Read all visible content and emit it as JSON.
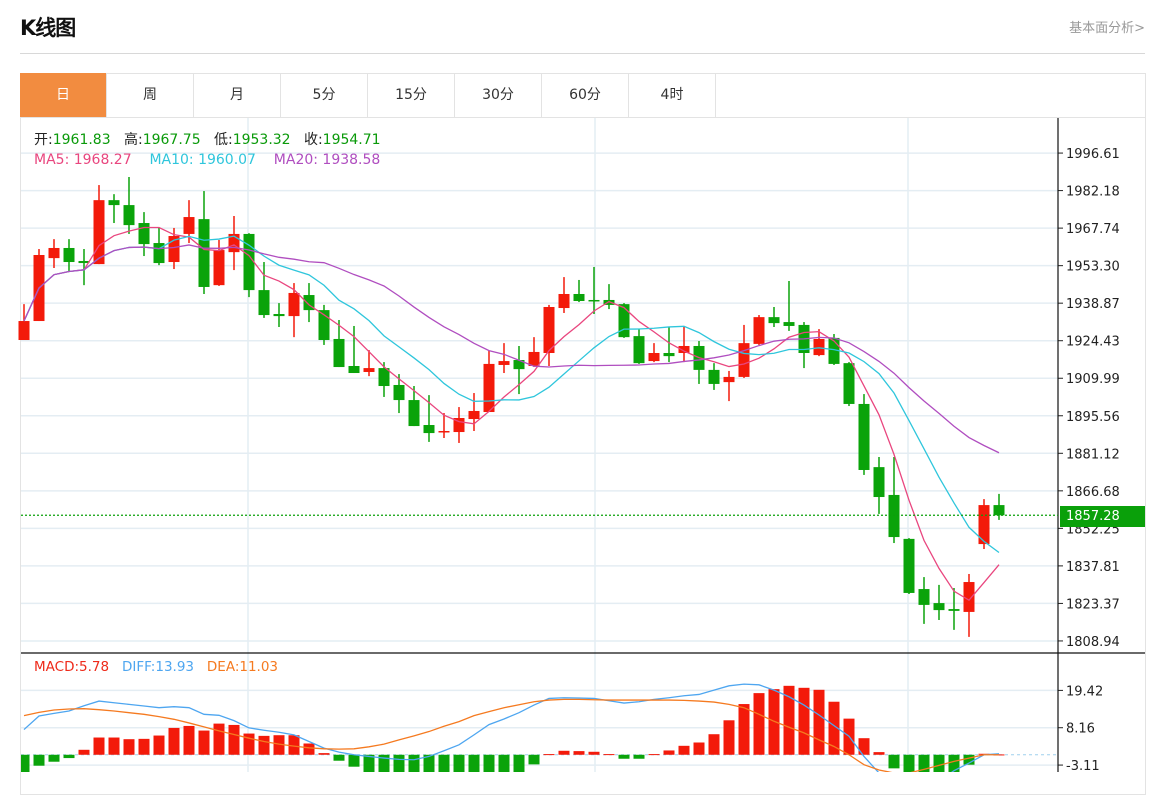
{
  "header": {
    "title": "K线图",
    "link": "基本面分析>"
  },
  "tabs": [
    {
      "label": "日",
      "active": true
    },
    {
      "label": "周"
    },
    {
      "label": "月"
    },
    {
      "label": "5分"
    },
    {
      "label": "15分"
    },
    {
      "label": "30分"
    },
    {
      "label": "60分"
    },
    {
      "label": "4时"
    }
  ],
  "ohlc_info": {
    "open_label": "开:",
    "open": "1961.83",
    "high_label": "高:",
    "high": "1967.75",
    "low_label": "低:",
    "low": "1953.32",
    "close_label": "收:",
    "close": "1954.71"
  },
  "ma_info": {
    "ma5": "MA5: 1968.27",
    "ma10": "MA10: 1960.07",
    "ma20": "MA20: 1938.58"
  },
  "macd_info": {
    "macd": "MACD:5.78",
    "diff": "DIFF:13.93",
    "dea": "DEA:11.03"
  },
  "current_price": "1857.28",
  "colors": {
    "up": "#f31a0a",
    "down": "#0aa30a",
    "ma5": "#e9467f",
    "ma10": "#2fc6dc",
    "ma20": "#b04ec0",
    "diff": "#4ea6f0",
    "dea": "#f57a20",
    "accent": "#f28c40"
  },
  "chart_data": [
    {
      "type": "candlestick",
      "title": "K线图",
      "y_ticks": [
        "1996.61",
        "1982.18",
        "1967.74",
        "1953.30",
        "1938.87",
        "1924.43",
        "1909.99",
        "1895.56",
        "1881.12",
        "1866.68",
        "1852.25",
        "1837.81",
        "1823.37",
        "1808.94"
      ],
      "ylim": [
        1804.3,
        2010.1
      ],
      "grid": true,
      "candles_ohlc": [
        [
          1924.7,
          1938.5,
          1924.7,
          1932.0
        ],
        [
          1932.0,
          1959.7,
          1932.0,
          1957.4
        ],
        [
          1956.2,
          1963.5,
          1952.4,
          1960.1
        ],
        [
          1960.1,
          1963.5,
          1951.2,
          1954.7
        ],
        [
          1955.1,
          1959.7,
          1945.8,
          1954.3
        ],
        [
          1953.9,
          1984.3,
          1953.9,
          1978.5
        ],
        [
          1978.5,
          1980.8,
          1969.7,
          1976.6
        ],
        [
          1976.6,
          1987.4,
          1965.5,
          1968.9
        ],
        [
          1969.7,
          1973.9,
          1957.0,
          1961.6
        ],
        [
          1962.0,
          1967.8,
          1953.5,
          1954.3
        ],
        [
          1954.7,
          1967.8,
          1952.0,
          1964.7
        ],
        [
          1965.5,
          1978.5,
          1962.0,
          1972.0
        ],
        [
          1971.2,
          1982.0,
          1942.4,
          1945.1
        ],
        [
          1945.8,
          1963.2,
          1945.5,
          1959.3
        ],
        [
          1958.5,
          1972.4,
          1951.6,
          1965.5
        ],
        [
          1965.5,
          1965.8,
          1941.2,
          1943.9
        ],
        [
          1943.9,
          1954.7,
          1933.2,
          1934.3
        ],
        [
          1934.7,
          1938.9,
          1929.7,
          1933.9
        ],
        [
          1933.9,
          1946.6,
          1925.8,
          1942.8
        ],
        [
          1942.0,
          1946.6,
          1931.6,
          1936.2
        ],
        [
          1936.2,
          1938.2,
          1922.8,
          1924.7
        ],
        [
          1925.1,
          1932.4,
          1914.3,
          1914.3
        ],
        [
          1914.7,
          1930.1,
          1912.0,
          1912.0
        ],
        [
          1912.4,
          1920.8,
          1910.8,
          1913.9
        ],
        [
          1913.9,
          1916.2,
          1902.8,
          1907.0
        ],
        [
          1907.4,
          1911.6,
          1896.6,
          1901.6
        ],
        [
          1901.6,
          1907.0,
          1891.6,
          1891.6
        ],
        [
          1892.0,
          1903.5,
          1885.5,
          1888.9
        ],
        [
          1889.3,
          1896.6,
          1887.0,
          1889.7
        ],
        [
          1889.3,
          1898.9,
          1885.1,
          1894.7
        ],
        [
          1894.3,
          1904.3,
          1889.7,
          1897.4
        ],
        [
          1897.0,
          1920.5,
          1897.0,
          1915.5
        ],
        [
          1915.1,
          1923.5,
          1912.0,
          1916.6
        ],
        [
          1917.0,
          1922.4,
          1903.9,
          1913.5
        ],
        [
          1914.7,
          1925.8,
          1914.3,
          1920.1
        ],
        [
          1919.7,
          1938.2,
          1914.7,
          1937.4
        ],
        [
          1937.0,
          1948.9,
          1935.1,
          1942.4
        ],
        [
          1942.4,
          1947.8,
          1939.3,
          1939.7
        ],
        [
          1940.1,
          1952.8,
          1934.7,
          1939.7
        ],
        [
          1940.1,
          1946.2,
          1936.6,
          1938.2
        ],
        [
          1938.5,
          1938.9,
          1925.5,
          1925.8
        ],
        [
          1926.2,
          1928.9,
          1915.5,
          1915.8
        ],
        [
          1916.6,
          1923.5,
          1916.2,
          1919.7
        ],
        [
          1919.7,
          1929.7,
          1916.2,
          1918.5
        ],
        [
          1919.7,
          1930.1,
          1916.2,
          1922.4
        ],
        [
          1922.4,
          1924.3,
          1907.8,
          1913.2
        ],
        [
          1913.2,
          1915.8,
          1905.5,
          1907.8
        ],
        [
          1908.5,
          1912.8,
          1901.2,
          1910.5
        ],
        [
          1910.5,
          1930.5,
          1910.1,
          1923.5
        ],
        [
          1923.2,
          1934.3,
          1922.8,
          1933.5
        ],
        [
          1933.5,
          1937.4,
          1929.7,
          1931.2
        ],
        [
          1931.6,
          1947.4,
          1928.2,
          1930.1
        ],
        [
          1930.5,
          1931.6,
          1913.9,
          1919.7
        ],
        [
          1918.9,
          1928.9,
          1918.5,
          1925.1
        ],
        [
          1925.5,
          1927.0,
          1915.1,
          1915.5
        ],
        [
          1915.8,
          1916.2,
          1899.3,
          1900.1
        ],
        [
          1900.1,
          1903.9,
          1872.8,
          1874.7
        ],
        [
          1875.8,
          1879.7,
          1857.8,
          1864.3
        ],
        [
          1865.1,
          1879.7,
          1846.6,
          1848.9
        ],
        [
          1848.2,
          1848.5,
          1827.0,
          1827.4
        ],
        [
          1828.9,
          1833.5,
          1815.5,
          1822.8
        ],
        [
          1823.5,
          1830.5,
          1817.0,
          1820.8
        ],
        [
          1821.2,
          1829.3,
          1813.2,
          1820.5
        ],
        [
          1820.1,
          1834.7,
          1810.5,
          1831.6
        ],
        [
          1846.2,
          1863.5,
          1844.3,
          1861.2
        ],
        [
          1861.2,
          1865.5,
          1855.5,
          1857.28
        ]
      ],
      "moving_averages": [
        "MA5",
        "MA10",
        "MA20"
      ]
    },
    {
      "type": "bar+line",
      "title": "MACD",
      "y_ticks": [
        "19.42",
        "8.16",
        "-3.11"
      ],
      "ylim": [
        -5.2,
        30.4
      ],
      "macd_hist": [
        -6,
        -3.3,
        -2.1,
        -1.0,
        1.5,
        5.2,
        5.2,
        4.7,
        4.8,
        5.8,
        8.1,
        8.7,
        7.3,
        9.4,
        9.0,
        6.4,
        5.7,
        5.9,
        5.9,
        3.4,
        0.5,
        -1.8,
        -3.6,
        -5.5,
        -6.5,
        -7,
        -7.5,
        -8,
        -8,
        -7.5,
        -7,
        -6,
        -5.8,
        -5.6,
        -2.9,
        0.2,
        1.2,
        1.1,
        0.9,
        0.2,
        -1.2,
        -1.2,
        0.2,
        1.3,
        2.7,
        3.7,
        6.2,
        10.4,
        15.3,
        18.6,
        19.8,
        20.8,
        20.2,
        19.6,
        16.0,
        10.9,
        5.0,
        0.8,
        -4.1,
        -7,
        -7.5,
        -7,
        -6.5,
        -3.0,
        0.3,
        0.1
      ],
      "diff": [
        7.6,
        11.7,
        12.5,
        13.2,
        14.8,
        16.2,
        15.7,
        15.2,
        14.7,
        14.2,
        14.5,
        14.2,
        12.2,
        11.9,
        10.3,
        8.1,
        7.4,
        6.8,
        6.0,
        4.0,
        2.0,
        0.8,
        0,
        -0.5,
        -1.0,
        -1.4,
        -1.5,
        -0.5,
        1.2,
        3.0,
        6.0,
        9.1,
        10.8,
        12.7,
        15.0,
        17.0,
        17.2,
        17.1,
        17.0,
        16.3,
        15.6,
        16.0,
        16.7,
        17.2,
        17.8,
        18.2,
        19.5,
        20.8,
        21.3,
        21.1,
        19.5,
        17.5,
        15.0,
        12.0,
        8.8,
        5.6,
        -0.5,
        -5.5,
        -8,
        -9.5,
        -9.5,
        -8,
        -4.8,
        -2.5,
        0,
        0.3
      ],
      "dea": [
        11.8,
        12.8,
        13.5,
        13.8,
        13.9,
        13.6,
        13.2,
        12.7,
        12.2,
        11.5,
        10.7,
        9.6,
        8.4,
        7.2,
        6.1,
        5.0,
        4.0,
        3.2,
        2.6,
        2.1,
        1.8,
        1.7,
        1.8,
        2.4,
        3.2,
        4.5,
        5.7,
        7.0,
        8.6,
        10.0,
        11.8,
        13.0,
        14.2,
        15.1,
        16.0,
        16.5,
        16.7,
        16.7,
        16.6,
        16.5,
        16.5,
        16.5,
        16.5,
        16.5,
        16.4,
        16.2,
        15.9,
        15.2,
        14.2,
        12.2,
        10.1,
        8.3,
        6.6,
        4.5,
        2.5,
        0,
        -3.0,
        -4.6,
        -5.5,
        -5.5,
        -4.4,
        -3.2,
        -2.0,
        -1.0,
        0,
        0
      ]
    }
  ]
}
